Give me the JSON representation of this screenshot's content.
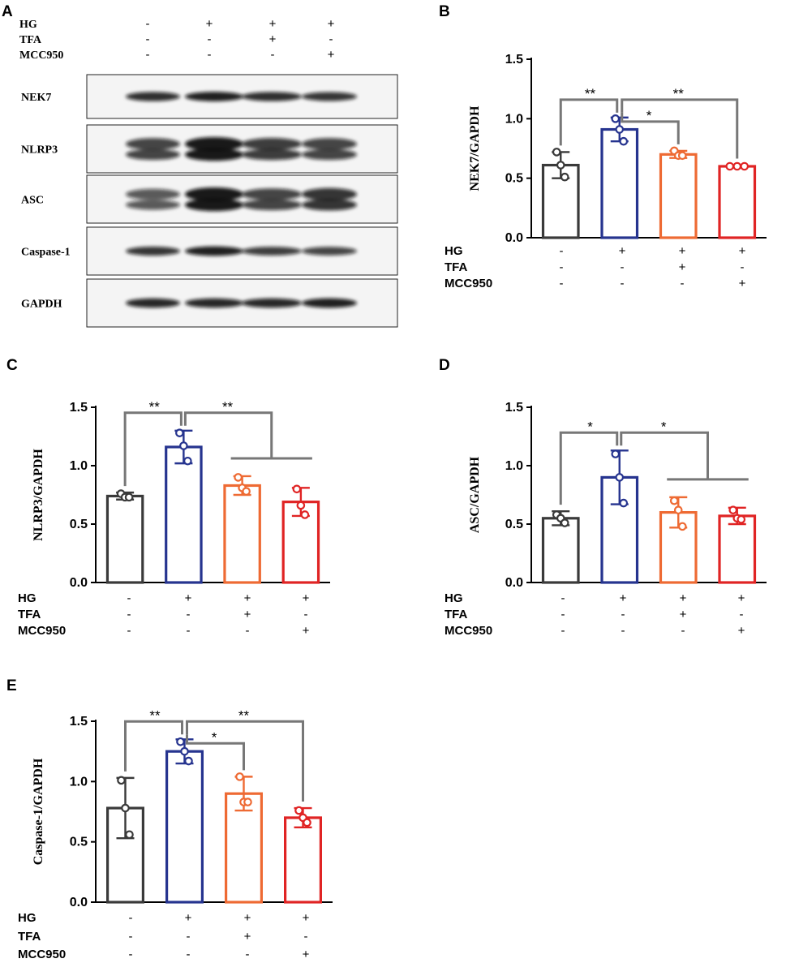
{
  "colors": {
    "group_1": "#3a3a3a",
    "group_2": "#26348f",
    "group_3": "#ee6a33",
    "group_4": "#e02424",
    "bracket": "#777777",
    "axis": "#000000"
  },
  "western_blot": {
    "panel_label": "A",
    "conditions": [
      {
        "name": "HG",
        "values": [
          "-",
          "+",
          "+",
          "+"
        ]
      },
      {
        "name": "TFA",
        "values": [
          "-",
          "-",
          "+",
          "-"
        ]
      },
      {
        "name": "MCC950",
        "values": [
          "-",
          "-",
          "-",
          "+"
        ]
      }
    ],
    "bands": [
      {
        "name": "NEK7",
        "intensity": [
          0.85,
          0.95,
          0.85,
          0.8
        ],
        "double": false
      },
      {
        "name": "NLRP3",
        "intensity": [
          0.7,
          1.0,
          0.75,
          0.7
        ],
        "double": true
      },
      {
        "name": "ASC",
        "intensity": [
          0.55,
          1.0,
          0.7,
          0.8
        ],
        "double": true
      },
      {
        "name": "Caspase-1",
        "intensity": [
          0.8,
          0.95,
          0.75,
          0.7
        ],
        "double": false
      },
      {
        "name": "GAPDH",
        "intensity": [
          0.9,
          0.9,
          0.9,
          0.95
        ],
        "double": false
      }
    ]
  },
  "chart_data": [
    {
      "panel_label": "B",
      "type": "bar",
      "title": "",
      "xlabel": "",
      "ylabel": "NEK7/GAPDH",
      "ylim": [
        0,
        1.5
      ],
      "yticks": [
        "0.0",
        "0.5",
        "1.0",
        "1.5"
      ],
      "conditions": [
        {
          "name": "HG",
          "values": [
            "-",
            "+",
            "+",
            "+"
          ]
        },
        {
          "name": "TFA",
          "values": [
            "-",
            "-",
            "+",
            "-"
          ]
        },
        {
          "name": "MCC950",
          "values": [
            "-",
            "-",
            "-",
            "+"
          ]
        }
      ],
      "values": [
        0.61,
        0.91,
        0.7,
        0.6
      ],
      "sd": [
        0.11,
        0.1,
        0.03,
        0.01
      ],
      "points": [
        [
          0.72,
          0.61,
          0.51
        ],
        [
          1.0,
          0.91,
          0.81
        ],
        [
          0.73,
          0.69,
          0.69
        ],
        [
          0.6,
          0.6,
          0.6
        ]
      ],
      "significance": [
        {
          "from": 0,
          "to": 1,
          "label": "**"
        },
        {
          "from": 1,
          "to": 2,
          "label": "*"
        },
        {
          "from": 1,
          "to": 3,
          "label": "**"
        }
      ]
    },
    {
      "panel_label": "C",
      "type": "bar",
      "title": "",
      "xlabel": "",
      "ylabel": "NLRP3/GAPDH",
      "ylim": [
        0,
        1.5
      ],
      "yticks": [
        "0.0",
        "0.5",
        "1.0",
        "1.5"
      ],
      "conditions": [
        {
          "name": "HG",
          "values": [
            "-",
            "+",
            "+",
            "+"
          ]
        },
        {
          "name": "TFA",
          "values": [
            "-",
            "-",
            "+",
            "-"
          ]
        },
        {
          "name": "MCC950",
          "values": [
            "-",
            "-",
            "-",
            "+"
          ]
        }
      ],
      "values": [
        0.74,
        1.16,
        0.83,
        0.69
      ],
      "sd": [
        0.03,
        0.14,
        0.08,
        0.12
      ],
      "points": [
        [
          0.76,
          0.73,
          0.73
        ],
        [
          1.28,
          1.17,
          1.04
        ],
        [
          0.9,
          0.81,
          0.78
        ],
        [
          0.8,
          0.66,
          0.58
        ]
      ],
      "significance": [
        {
          "from": 0,
          "to": 1,
          "label": "**"
        },
        {
          "from": 1,
          "to": "2-3",
          "label": "**"
        }
      ]
    },
    {
      "panel_label": "D",
      "type": "bar",
      "title": "",
      "xlabel": "",
      "ylabel": "ASC/GAPDH",
      "ylim": [
        0,
        1.5
      ],
      "yticks": [
        "0.0",
        "0.5",
        "1.0",
        "1.5"
      ],
      "conditions": [
        {
          "name": "HG",
          "values": [
            "-",
            "+",
            "+",
            "+"
          ]
        },
        {
          "name": "TFA",
          "values": [
            "-",
            "-",
            "+",
            "-"
          ]
        },
        {
          "name": "MCC950",
          "values": [
            "-",
            "-",
            "-",
            "+"
          ]
        }
      ],
      "values": [
        0.55,
        0.9,
        0.6,
        0.57
      ],
      "sd": [
        0.06,
        0.23,
        0.13,
        0.07
      ],
      "points": [
        [
          0.58,
          0.55,
          0.51
        ],
        [
          1.1,
          0.9,
          0.68
        ],
        [
          0.7,
          0.62,
          0.48
        ],
        [
          0.62,
          0.55,
          0.54
        ]
      ],
      "significance": [
        {
          "from": 0,
          "to": 1,
          "label": "*"
        },
        {
          "from": 1,
          "to": "2-3",
          "label": "*"
        }
      ]
    },
    {
      "panel_label": "E",
      "type": "bar",
      "title": "",
      "xlabel": "",
      "ylabel": "Caspase-1/GAPDH",
      "ylim": [
        0,
        1.5
      ],
      "yticks": [
        "0.0",
        "0.5",
        "1.0",
        "1.5"
      ],
      "conditions": [
        {
          "name": "HG",
          "values": [
            "-",
            "+",
            "+",
            "+"
          ]
        },
        {
          "name": "TFA",
          "values": [
            "-",
            "-",
            "+",
            "-"
          ]
        },
        {
          "name": "MCC950",
          "values": [
            "-",
            "-",
            "-",
            "+"
          ]
        }
      ],
      "values": [
        0.78,
        1.25,
        0.9,
        0.7
      ],
      "sd": [
        0.25,
        0.1,
        0.14,
        0.08
      ],
      "points": [
        [
          1.01,
          0.78,
          0.56
        ],
        [
          1.33,
          1.25,
          1.17
        ],
        [
          1.04,
          0.83,
          0.83
        ],
        [
          0.76,
          0.7,
          0.66
        ]
      ],
      "significance": [
        {
          "from": 0,
          "to": 1,
          "label": "**"
        },
        {
          "from": 1,
          "to": 2,
          "label": "*"
        },
        {
          "from": 1,
          "to": 3,
          "label": "**"
        }
      ]
    }
  ]
}
